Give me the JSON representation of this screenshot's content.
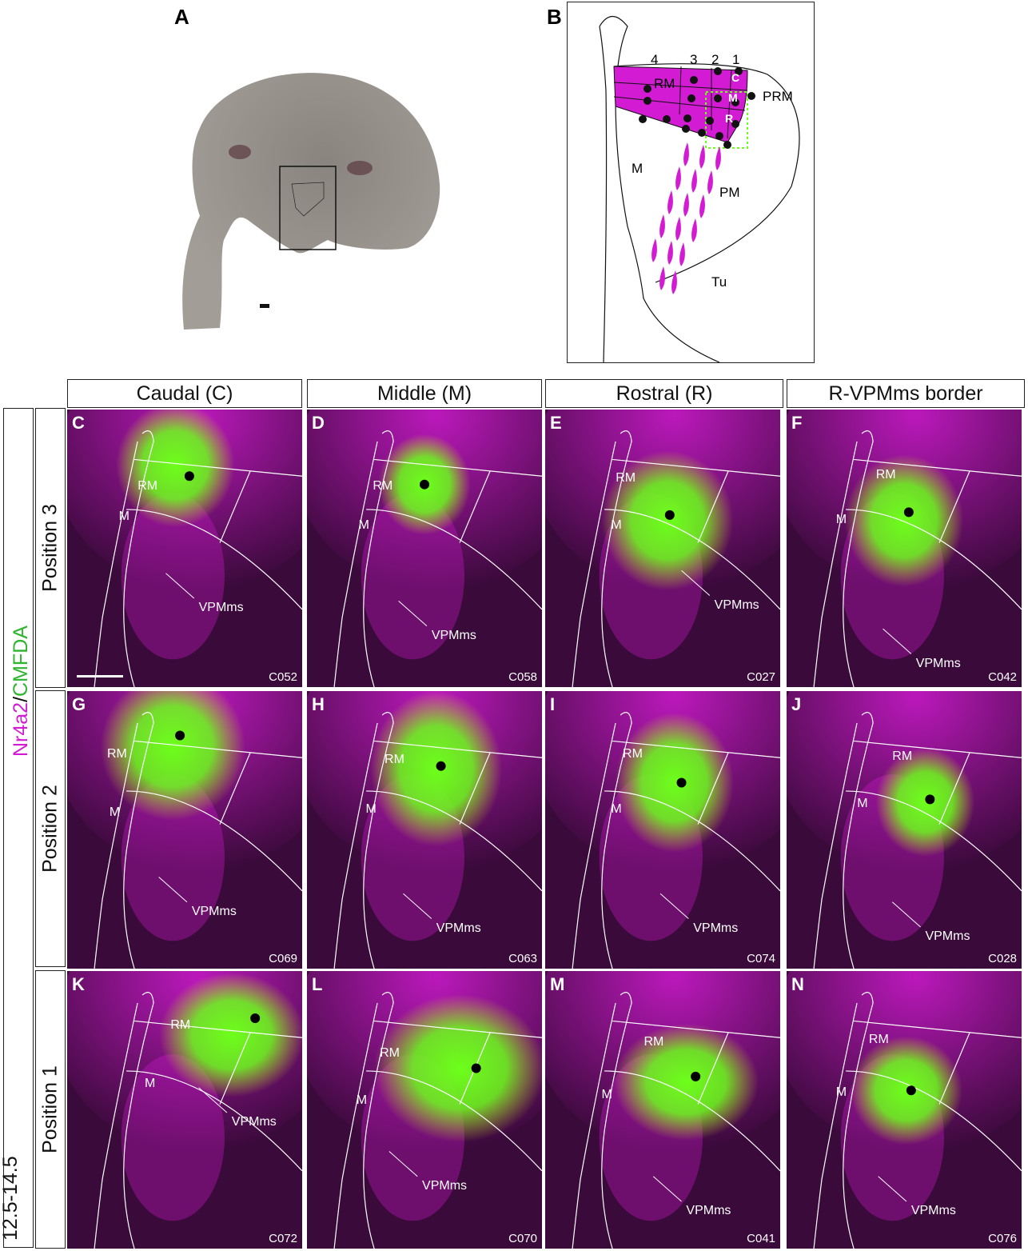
{
  "panel_a": {
    "letter": "A"
  },
  "panel_b": {
    "letter": "B",
    "region_labels": {
      "rm": "RM",
      "prm": "PRM",
      "m": "M",
      "pm": "PM",
      "tu": "Tu",
      "c": "C",
      "mid": "M",
      "r": "R"
    },
    "positions": [
      "4",
      "3",
      "2",
      "1"
    ]
  },
  "column_headers": [
    "Caudal (C)",
    "Middle (M)",
    "Rostral (R)",
    "R-VPMms border"
  ],
  "row_headers": [
    "Position 3",
    "Position 2",
    "Position 1"
  ],
  "age_label": "12.5-14.5",
  "stain_label": {
    "part1": "Nr4a2",
    "slash": "/",
    "part2": "CMFDA"
  },
  "panels": [
    {
      "letter": "C",
      "id": "C052",
      "rm": "RM",
      "m": "M",
      "vpm": "VPMms"
    },
    {
      "letter": "D",
      "id": "C058",
      "rm": "RM",
      "m": "M",
      "vpm": "VPMms"
    },
    {
      "letter": "E",
      "id": "C027",
      "rm": "RM",
      "m": "M",
      "vpm": "VPMms"
    },
    {
      "letter": "F",
      "id": "C042",
      "rm": "RM",
      "m": "M",
      "vpm": "VPMms"
    },
    {
      "letter": "G",
      "id": "C069",
      "rm": "RM",
      "m": "M",
      "vpm": "VPMms"
    },
    {
      "letter": "H",
      "id": "C063",
      "rm": "RM",
      "m": "M",
      "vpm": "VPMms"
    },
    {
      "letter": "I",
      "id": "C074",
      "rm": "RM",
      "m": "M",
      "vpm": "VPMms"
    },
    {
      "letter": "J",
      "id": "C028",
      "rm": "RM",
      "m": "M",
      "vpm": "VPMms"
    },
    {
      "letter": "K",
      "id": "C072",
      "rm": "RM",
      "m": "M",
      "vpm": "VPMms"
    },
    {
      "letter": "L",
      "id": "C070",
      "rm": "RM",
      "m": "M",
      "vpm": "VPMms"
    },
    {
      "letter": "M",
      "id": "C041",
      "rm": "RM",
      "m": "M",
      "vpm": "VPMms"
    },
    {
      "letter": "N",
      "id": "C076",
      "rm": "RM",
      "m": "M",
      "vpm": "VPMms"
    }
  ],
  "colors": {
    "magenta": "#d21bd2",
    "green": "#6dff1a",
    "background": "#3a0a3a"
  }
}
